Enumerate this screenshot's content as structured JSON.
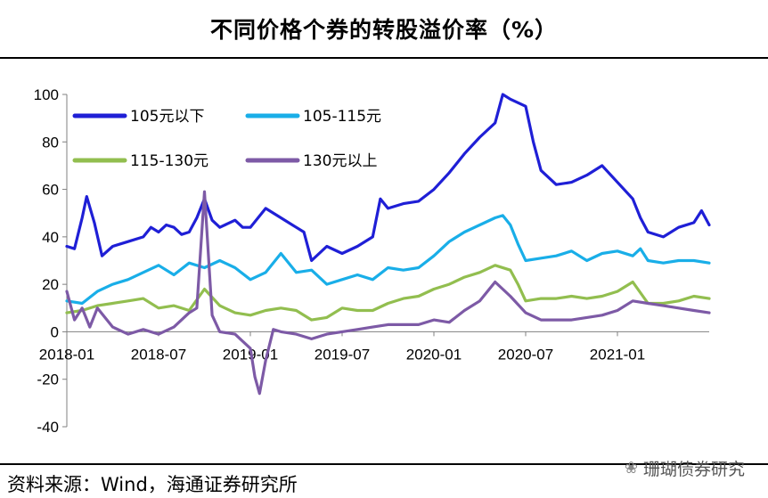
{
  "title": "不同价格个券的转股溢价率（%）",
  "source": "资料来源：Wind，海通证券研究所",
  "watermark": "珊瑚债券研究",
  "watermark_icon": "wechat-icon",
  "chart_data": {
    "type": "line",
    "title": "不同价格个券的转股溢价率（%）",
    "xlabel": "",
    "ylabel": "",
    "ylim": [
      -40,
      100
    ],
    "yticks": [
      -40,
      -20,
      0,
      20,
      40,
      60,
      80,
      100
    ],
    "xlim": [
      0,
      42
    ],
    "x_ticks": [
      {
        "label": "2018-01",
        "month": 0
      },
      {
        "label": "2018-07",
        "month": 6
      },
      {
        "label": "2019-01",
        "month": 12
      },
      {
        "label": "2019-07",
        "month": 18
      },
      {
        "label": "2020-01",
        "month": 24
      },
      {
        "label": "2020-07",
        "month": 30
      },
      {
        "label": "2021-01",
        "month": 36
      }
    ],
    "legend_position": "top-left",
    "series": [
      {
        "name": "105元以下",
        "color": "#1f1fd6",
        "points": [
          [
            0,
            36
          ],
          [
            0.5,
            35
          ],
          [
            1,
            48
          ],
          [
            1.3,
            57
          ],
          [
            1.8,
            46
          ],
          [
            2.3,
            32
          ],
          [
            3,
            36
          ],
          [
            4,
            38
          ],
          [
            5,
            40
          ],
          [
            5.5,
            44
          ],
          [
            6,
            42
          ],
          [
            6.5,
            45
          ],
          [
            7,
            44
          ],
          [
            7.5,
            41
          ],
          [
            8,
            42
          ],
          [
            8.5,
            48
          ],
          [
            9,
            56
          ],
          [
            9.5,
            47
          ],
          [
            10,
            44
          ],
          [
            11,
            47
          ],
          [
            11.5,
            44
          ],
          [
            12,
            44
          ],
          [
            13,
            52
          ],
          [
            14,
            48
          ],
          [
            15,
            44
          ],
          [
            15.5,
            42
          ],
          [
            16,
            30
          ],
          [
            17,
            36
          ],
          [
            18,
            33
          ],
          [
            19,
            36
          ],
          [
            20,
            40
          ],
          [
            20.5,
            56
          ],
          [
            21,
            52
          ],
          [
            22,
            54
          ],
          [
            23,
            55
          ],
          [
            24,
            60
          ],
          [
            25,
            67
          ],
          [
            26,
            75
          ],
          [
            27,
            82
          ],
          [
            28,
            88
          ],
          [
            28.5,
            100
          ],
          [
            29,
            98
          ],
          [
            30,
            95
          ],
          [
            30.5,
            80
          ],
          [
            31,
            68
          ],
          [
            32,
            62
          ],
          [
            33,
            63
          ],
          [
            34,
            66
          ],
          [
            35,
            70
          ],
          [
            36,
            63
          ],
          [
            37,
            56
          ],
          [
            37.5,
            48
          ],
          [
            38,
            42
          ],
          [
            39,
            40
          ],
          [
            40,
            44
          ],
          [
            41,
            46
          ],
          [
            41.5,
            51
          ],
          [
            42,
            45
          ]
        ]
      },
      {
        "name": "105-115元",
        "color": "#19aee8",
        "points": [
          [
            0,
            13
          ],
          [
            1,
            12
          ],
          [
            2,
            17
          ],
          [
            3,
            20
          ],
          [
            4,
            22
          ],
          [
            5,
            25
          ],
          [
            6,
            28
          ],
          [
            7,
            24
          ],
          [
            8,
            29
          ],
          [
            9,
            27
          ],
          [
            10,
            30
          ],
          [
            11,
            27
          ],
          [
            12,
            22
          ],
          [
            13,
            25
          ],
          [
            14,
            33
          ],
          [
            15,
            25
          ],
          [
            16,
            26
          ],
          [
            17,
            20
          ],
          [
            18,
            22
          ],
          [
            19,
            24
          ],
          [
            20,
            22
          ],
          [
            21,
            27
          ],
          [
            22,
            26
          ],
          [
            23,
            27
          ],
          [
            24,
            32
          ],
          [
            25,
            38
          ],
          [
            26,
            42
          ],
          [
            27,
            45
          ],
          [
            28,
            48
          ],
          [
            28.5,
            49
          ],
          [
            29,
            45
          ],
          [
            29.5,
            37
          ],
          [
            30,
            30
          ],
          [
            31,
            31
          ],
          [
            32,
            32
          ],
          [
            33,
            34
          ],
          [
            34,
            30
          ],
          [
            35,
            33
          ],
          [
            36,
            34
          ],
          [
            37,
            32
          ],
          [
            37.5,
            35
          ],
          [
            38,
            30
          ],
          [
            39,
            29
          ],
          [
            40,
            30
          ],
          [
            41,
            30
          ],
          [
            42,
            29
          ]
        ]
      },
      {
        "name": "115-130元",
        "color": "#92be4f",
        "points": [
          [
            0,
            8
          ],
          [
            1,
            9
          ],
          [
            2,
            11
          ],
          [
            3,
            12
          ],
          [
            4,
            13
          ],
          [
            5,
            14
          ],
          [
            6,
            10
          ],
          [
            7,
            11
          ],
          [
            8,
            9
          ],
          [
            9,
            18
          ],
          [
            10,
            11
          ],
          [
            11,
            8
          ],
          [
            12,
            7
          ],
          [
            13,
            9
          ],
          [
            14,
            10
          ],
          [
            15,
            9
          ],
          [
            16,
            5
          ],
          [
            17,
            6
          ],
          [
            18,
            10
          ],
          [
            19,
            9
          ],
          [
            20,
            9
          ],
          [
            21,
            12
          ],
          [
            22,
            14
          ],
          [
            23,
            15
          ],
          [
            24,
            18
          ],
          [
            25,
            20
          ],
          [
            26,
            23
          ],
          [
            27,
            25
          ],
          [
            28,
            28
          ],
          [
            29,
            26
          ],
          [
            29.5,
            20
          ],
          [
            30,
            13
          ],
          [
            31,
            14
          ],
          [
            32,
            14
          ],
          [
            33,
            15
          ],
          [
            34,
            14
          ],
          [
            35,
            15
          ],
          [
            36,
            17
          ],
          [
            37,
            21
          ],
          [
            38,
            12
          ],
          [
            39,
            12
          ],
          [
            40,
            13
          ],
          [
            41,
            15
          ],
          [
            42,
            14
          ]
        ]
      },
      {
        "name": "130元以上",
        "color": "#7d5aa6",
        "points": [
          [
            0,
            17
          ],
          [
            0.5,
            5
          ],
          [
            1,
            10
          ],
          [
            1.5,
            2
          ],
          [
            2,
            10
          ],
          [
            3,
            2
          ],
          [
            4,
            -1
          ],
          [
            5,
            1
          ],
          [
            6,
            -1
          ],
          [
            7,
            2
          ],
          [
            8,
            8
          ],
          [
            8.5,
            10
          ],
          [
            9,
            59
          ],
          [
            9.5,
            7
          ],
          [
            10,
            0
          ],
          [
            11,
            -1
          ],
          [
            12,
            -7
          ],
          [
            12.3,
            -19
          ],
          [
            12.6,
            -26
          ],
          [
            13,
            -12
          ],
          [
            13.5,
            1
          ],
          [
            14,
            0
          ],
          [
            15,
            -1
          ],
          [
            16,
            -3
          ],
          [
            17,
            -1
          ],
          [
            18,
            0
          ],
          [
            19,
            1
          ],
          [
            20,
            2
          ],
          [
            21,
            3
          ],
          [
            22,
            3
          ],
          [
            23,
            3
          ],
          [
            24,
            5
          ],
          [
            25,
            4
          ],
          [
            26,
            9
          ],
          [
            27,
            13
          ],
          [
            28,
            21
          ],
          [
            29,
            15
          ],
          [
            30,
            8
          ],
          [
            31,
            5
          ],
          [
            32,
            5
          ],
          [
            33,
            5
          ],
          [
            34,
            6
          ],
          [
            35,
            7
          ],
          [
            36,
            9
          ],
          [
            37,
            13
          ],
          [
            38,
            12
          ],
          [
            39,
            11
          ],
          [
            40,
            10
          ],
          [
            41,
            9
          ],
          [
            42,
            8
          ]
        ]
      }
    ]
  }
}
